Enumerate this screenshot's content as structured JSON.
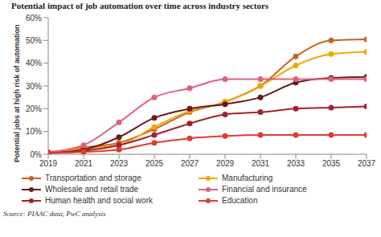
{
  "chart_data": {
    "type": "line",
    "title": "Potential impact of job automation over time across industry sectors",
    "y_label": "Potential jobs at high risk of automation",
    "source": "Source: PIAAC data, PwC analysis",
    "x": [
      2019,
      2021,
      2023,
      2025,
      2027,
      2029,
      2031,
      2033,
      2035,
      2037
    ],
    "xlim": [
      2019,
      2037
    ],
    "xticks": [
      2019,
      2021,
      2023,
      2025,
      2027,
      2029,
      2031,
      2033,
      2035,
      2037
    ],
    "ylim": [
      0,
      60
    ],
    "yticks": [
      {
        "value": 0,
        "label": "0%"
      },
      {
        "value": 10,
        "label": "10%"
      },
      {
        "value": 20,
        "label": "20%"
      },
      {
        "value": 30,
        "label": "30%"
      },
      {
        "value": 40,
        "label": "40%"
      },
      {
        "value": 50,
        "label": "50%"
      },
      {
        "value": 60,
        "label": "60%"
      }
    ],
    "grid": false,
    "legend": "bottom",
    "marker": "circle",
    "series": [
      {
        "name": "Transportation and storage",
        "color": "#c8641e",
        "values": [
          0.5,
          3,
          5,
          11,
          18.5,
          23,
          30,
          43,
          50,
          50.5
        ]
      },
      {
        "name": "Manufacturing",
        "color": "#f0a800",
        "values": [
          0.5,
          2.5,
          4,
          12,
          19,
          23,
          30,
          39,
          44,
          45
        ]
      },
      {
        "name": "Wholesale and retail trade",
        "color": "#6b1a1a",
        "values": [
          0.5,
          2,
          7.5,
          16,
          20,
          22,
          25,
          31.5,
          33.5,
          34
        ]
      },
      {
        "name": "Financial and insurance",
        "color": "#e0607a",
        "values": [
          1,
          4,
          14,
          25,
          29,
          33,
          33,
          33,
          33,
          33
        ]
      },
      {
        "name": "Human health and social work",
        "color": "#a8202a",
        "values": [
          0.5,
          1.5,
          4,
          8.5,
          13.5,
          17.5,
          18.5,
          20,
          20.5,
          21
        ]
      },
      {
        "name": "Education",
        "color": "#e03c31",
        "values": [
          0.5,
          1,
          2,
          5,
          7,
          8,
          8.5,
          8.5,
          8.5,
          8.5
        ]
      }
    ]
  }
}
